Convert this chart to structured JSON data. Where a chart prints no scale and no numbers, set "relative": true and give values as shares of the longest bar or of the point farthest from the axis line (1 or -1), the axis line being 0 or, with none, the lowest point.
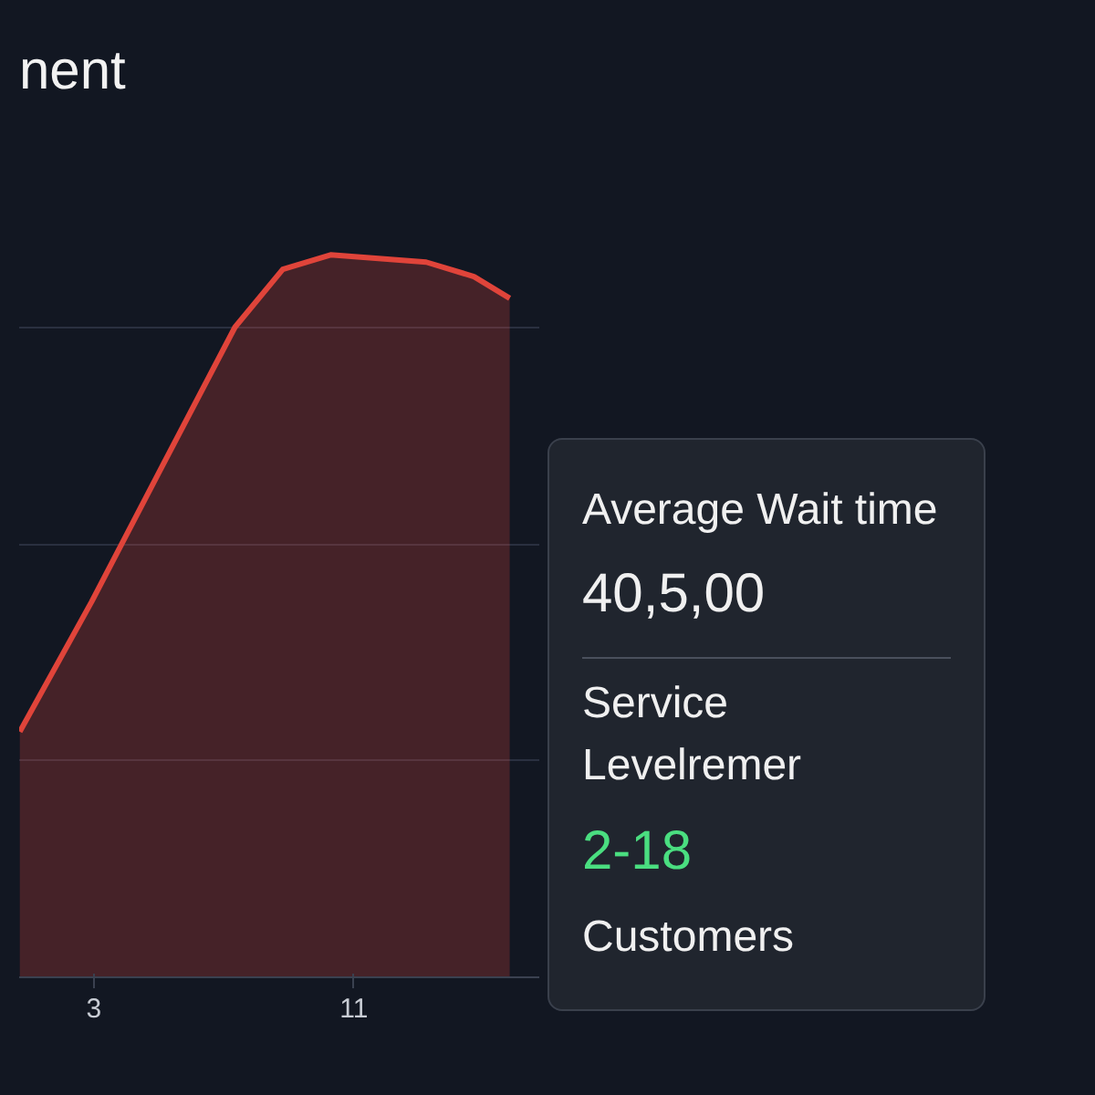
{
  "chart_data": [
    {
      "type": "area",
      "title": "nent",
      "relative": true,
      "grid": "y",
      "x": [
        0.72,
        2.93,
        5.13,
        7.34,
        8.81,
        10.28,
        13.22,
        14.69,
        15.79
      ],
      "xlim": [
        0.7,
        16.7
      ],
      "xticks": [
        3,
        11
      ],
      "series": [
        {
          "color": "#e0443a",
          "values": [
            0.34,
            0.52,
            0.71,
            0.9,
            0.98,
            1.0,
            0.99,
            0.97,
            0.94
          ]
        }
      ]
    },
    {
      "type": "other",
      "color": "#4ade80",
      "annotations": [
        "Average Wait time",
        "40,5,00",
        "Service Levelremer",
        "2-18",
        "Customers"
      ]
    }
  ]
}
